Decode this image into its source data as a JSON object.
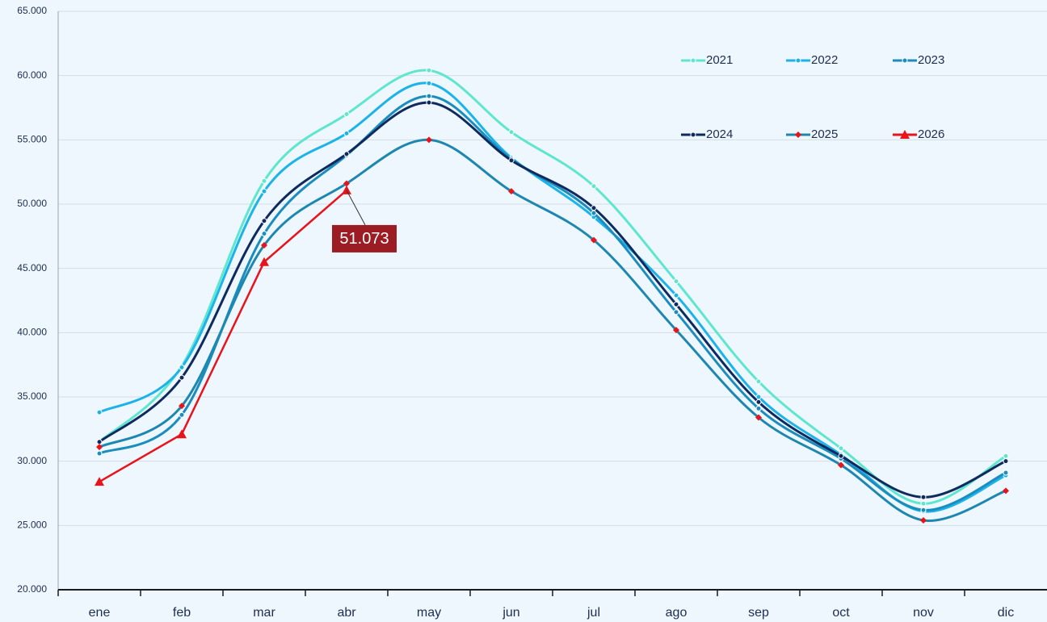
{
  "chart_data": {
    "type": "line",
    "categories": [
      "ene",
      "feb",
      "mar",
      "abr",
      "may",
      "jun",
      "jul",
      "ago",
      "sep",
      "oct",
      "nov",
      "dic"
    ],
    "series": [
      {
        "name": "2021",
        "color": "#5ee6cf",
        "marker": "circle",
        "marker_color": "#5ee6cf",
        "smooth": true,
        "values": [
          31500,
          37400,
          51800,
          57000,
          60400,
          55600,
          51400,
          44000,
          36200,
          31000,
          26700,
          30400
        ]
      },
      {
        "name": "2022",
        "color": "#1cb2ea",
        "marker": "circle",
        "marker_color": "#1cb2ea",
        "smooth": true,
        "values": [
          33800,
          37300,
          51000,
          55500,
          59400,
          53600,
          49000,
          42900,
          35000,
          30500,
          26100,
          28900
        ]
      },
      {
        "name": "2023",
        "color": "#1a8dbd",
        "marker": "circle",
        "marker_color": "#1a8dbd",
        "smooth": true,
        "values": [
          30600,
          33600,
          47700,
          53800,
          58400,
          53500,
          49300,
          41600,
          34100,
          30200,
          26200,
          29100
        ]
      },
      {
        "name": "2024",
        "color": "#0f2a5f",
        "marker": "circle",
        "marker_color": "#0f2a5f",
        "smooth": true,
        "values": [
          31500,
          36500,
          48700,
          53900,
          57900,
          53400,
          49700,
          42200,
          34600,
          30400,
          27200,
          30000
        ]
      },
      {
        "name": "2025",
        "color": "#1e87af",
        "marker": "diamond",
        "marker_color": "#e8141c",
        "smooth": true,
        "values": [
          31100,
          34300,
          46800,
          51600,
          55000,
          51000,
          47200,
          40200,
          33400,
          29700,
          25400,
          27700
        ]
      },
      {
        "name": "2026",
        "color": "#e8141c",
        "marker": "triangle",
        "marker_color": "#e8141c",
        "smooth": false,
        "values": [
          28400,
          32100,
          45500,
          51073,
          null,
          null,
          null,
          null,
          null,
          null,
          null,
          null
        ],
        "value_labels": [
          null,
          null,
          null,
          "51.073",
          null,
          null,
          null,
          null,
          null,
          null,
          null,
          null
        ]
      }
    ],
    "ylim": [
      20000,
      65000
    ],
    "yticks": [
      {
        "value": 20000,
        "label": "20.000"
      },
      {
        "value": 25000,
        "label": "25.000"
      },
      {
        "value": 30000,
        "label": "30.000"
      },
      {
        "value": 35000,
        "label": "35.000"
      },
      {
        "value": 40000,
        "label": "40.000"
      },
      {
        "value": 45000,
        "label": "45.000"
      },
      {
        "value": 50000,
        "label": "50.000"
      },
      {
        "value": 55000,
        "label": "55.000"
      },
      {
        "value": 60000,
        "label": "60.000"
      },
      {
        "value": 65000,
        "label": "65.000"
      }
    ],
    "grid": true,
    "legend": "upper right"
  }
}
